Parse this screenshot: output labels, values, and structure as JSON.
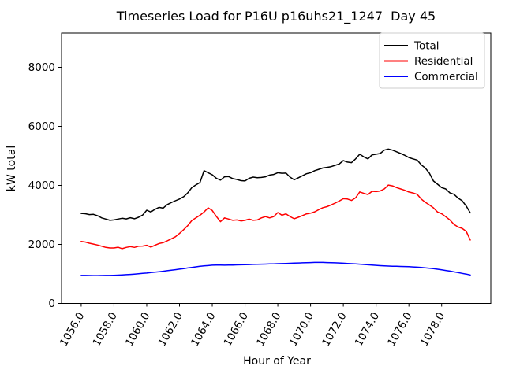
{
  "figure": {
    "background": "#ffffff",
    "axis_color": "#000000",
    "legend_border_color": "#cccccc"
  },
  "chart_data": {
    "type": "line",
    "title": "Timeseries Load for P16U p16uhs21_1247  Day 45",
    "xlabel": "Hour of Year",
    "ylabel": "kW total",
    "xlim": [
      1054.8,
      1081.0
    ],
    "ylim": [
      0,
      9160
    ],
    "grid": false,
    "x_ticks": [
      1056,
      1058,
      1060,
      1062,
      1064,
      1066,
      1068,
      1070,
      1072,
      1074,
      1076,
      1078
    ],
    "x_tick_labels": [
      "1056.0",
      "1058.0",
      "1060.0",
      "1062.0",
      "1064.0",
      "1066.0",
      "1068.0",
      "1070.0",
      "1072.0",
      "1074.0",
      "1076.0",
      "1078.0"
    ],
    "y_ticks": [
      0,
      2000,
      4000,
      6000,
      8000
    ],
    "y_tick_labels": [
      "0",
      "2000",
      "4000",
      "6000",
      "8000"
    ],
    "x": {
      "start": 1056.0,
      "step": 0.25,
      "count": 96
    },
    "legend": {
      "position": "upper right"
    },
    "series": [
      {
        "name": "Total",
        "color": "#000000",
        "values": [
          3050,
          3040,
          3010,
          3020,
          2970,
          2900,
          2860,
          2815,
          2830,
          2860,
          2885,
          2865,
          2905,
          2870,
          2920,
          2995,
          3160,
          3100,
          3190,
          3255,
          3230,
          3350,
          3420,
          3480,
          3540,
          3615,
          3745,
          3925,
          4015,
          4100,
          4500,
          4430,
          4360,
          4240,
          4180,
          4290,
          4300,
          4230,
          4200,
          4160,
          4150,
          4240,
          4280,
          4260,
          4270,
          4290,
          4350,
          4370,
          4430,
          4410,
          4415,
          4280,
          4190,
          4255,
          4325,
          4395,
          4430,
          4500,
          4545,
          4590,
          4610,
          4635,
          4680,
          4725,
          4840,
          4790,
          4770,
          4900,
          5055,
          4965,
          4900,
          5035,
          5055,
          5080,
          5195,
          5230,
          5195,
          5140,
          5080,
          5020,
          4945,
          4900,
          4860,
          4700,
          4590,
          4420,
          4150,
          4040,
          3925,
          3880,
          3750,
          3700,
          3570,
          3480,
          3300,
          3070
        ]
      },
      {
        "name": "Residential",
        "color": "#ff0000",
        "values": [
          2100,
          2080,
          2040,
          2010,
          1980,
          1940,
          1900,
          1880,
          1880,
          1905,
          1855,
          1900,
          1925,
          1900,
          1940,
          1945,
          1970,
          1910,
          1970,
          2030,
          2060,
          2120,
          2190,
          2260,
          2370,
          2500,
          2635,
          2810,
          2900,
          2990,
          3100,
          3240,
          3150,
          2950,
          2770,
          2900,
          2860,
          2815,
          2830,
          2795,
          2815,
          2855,
          2815,
          2830,
          2900,
          2945,
          2900,
          2945,
          3080,
          2990,
          3035,
          2945,
          2870,
          2920,
          2975,
          3035,
          3060,
          3105,
          3180,
          3245,
          3280,
          3340,
          3400,
          3470,
          3550,
          3540,
          3490,
          3580,
          3780,
          3730,
          3690,
          3800,
          3790,
          3810,
          3880,
          4010,
          3985,
          3925,
          3880,
          3835,
          3775,
          3745,
          3700,
          3540,
          3430,
          3340,
          3240,
          3100,
          3040,
          2940,
          2830,
          2680,
          2590,
          2545,
          2440,
          2150
        ]
      },
      {
        "name": "Commercial",
        "color": "#0000ff",
        "values": [
          950,
          948,
          946,
          945,
          945,
          946,
          948,
          950,
          955,
          960,
          968,
          976,
          985,
          995,
          1005,
          1018,
          1030,
          1045,
          1060,
          1075,
          1090,
          1108,
          1126,
          1144,
          1162,
          1182,
          1202,
          1222,
          1240,
          1258,
          1272,
          1284,
          1295,
          1300,
          1298,
          1295,
          1298,
          1302,
          1306,
          1310,
          1314,
          1318,
          1322,
          1326,
          1330,
          1334,
          1338,
          1342,
          1346,
          1350,
          1355,
          1360,
          1365,
          1370,
          1375,
          1380,
          1385,
          1388,
          1390,
          1388,
          1385,
          1380,
          1375,
          1370,
          1362,
          1354,
          1346,
          1338,
          1330,
          1320,
          1310,
          1300,
          1290,
          1280,
          1272,
          1266,
          1262,
          1258,
          1254,
          1250,
          1245,
          1238,
          1230,
          1220,
          1208,
          1194,
          1178,
          1160,
          1140,
          1118,
          1095,
          1070,
          1045,
          1020,
          995,
          965
        ]
      }
    ]
  }
}
